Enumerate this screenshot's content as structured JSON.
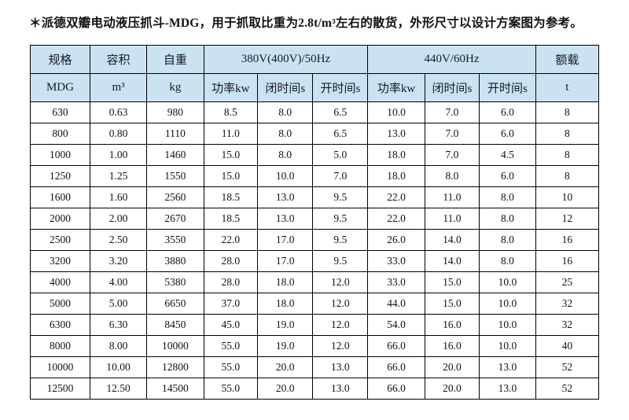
{
  "page": {
    "title": "＊派德双瓣电动液压抓斗-MDG，用于抓取比重为2.8t/m³左右的散货，外形尺寸以设计方案图为参考。"
  },
  "colors": {
    "header_bg": "#cbe3f0",
    "border": "#000000",
    "text": "#111111"
  },
  "table": {
    "header": {
      "spec": "规格",
      "spec_sub": "MDG",
      "capacity": "容积",
      "capacity_sub": "m³",
      "weight": "自重",
      "weight_sub": "kg",
      "group_50hz": "380V(400V)/50Hz",
      "group_60hz": "440V/60Hz",
      "power": "功率kw",
      "close_time": "闭时间s",
      "open_time": "开时间s",
      "load": "额载",
      "load_sub": "t"
    },
    "rows": [
      [
        "630",
        "0.63",
        "980",
        "8.5",
        "8.0",
        "6.5",
        "10.0",
        "7.0",
        "6.0",
        "8"
      ],
      [
        "800",
        "0.80",
        "1110",
        "11.0",
        "8.0",
        "6.5",
        "13.0",
        "7.0",
        "6.0",
        "8"
      ],
      [
        "1000",
        "1.00",
        "1460",
        "15.0",
        "8.0",
        "5.0",
        "18.0",
        "7.0",
        "4.5",
        "8"
      ],
      [
        "1250",
        "1.25",
        "1550",
        "15.0",
        "10.0",
        "7.0",
        "18.0",
        "8.0",
        "6.0",
        "8"
      ],
      [
        "1600",
        "1.60",
        "2560",
        "18.5",
        "13.0",
        "9.5",
        "22.0",
        "11.0",
        "8.0",
        "10"
      ],
      [
        "2000",
        "2.00",
        "2670",
        "18.5",
        "13.0",
        "9.5",
        "22.0",
        "11.0",
        "8.0",
        "12"
      ],
      [
        "2500",
        "2.50",
        "3550",
        "22.0",
        "17.0",
        "9.5",
        "26.0",
        "14.0",
        "8.0",
        "16"
      ],
      [
        "3200",
        "3.20",
        "3880",
        "28.0",
        "17.0",
        "9.5",
        "33.0",
        "14.0",
        "8.0",
        "16"
      ],
      [
        "4000",
        "4.00",
        "5380",
        "28.0",
        "18.0",
        "12.0",
        "33.0",
        "15.0",
        "10.0",
        "25"
      ],
      [
        "5000",
        "5.00",
        "6650",
        "37.0",
        "18.0",
        "12.0",
        "44.0",
        "15.0",
        "10.0",
        "32"
      ],
      [
        "6300",
        "6.30",
        "8450",
        "45.0",
        "19.0",
        "12.0",
        "54.0",
        "16.0",
        "10.0",
        "32"
      ],
      [
        "8000",
        "8.00",
        "10000",
        "55.0",
        "19.0",
        "12.0",
        "66.0",
        "16.0",
        "10.0",
        "40"
      ],
      [
        "10000",
        "10.00",
        "12800",
        "55.0",
        "20.0",
        "13.0",
        "66.0",
        "20.0",
        "13.0",
        "52"
      ],
      [
        "12500",
        "12.50",
        "14500",
        "55.0",
        "20.0",
        "13.0",
        "66.0",
        "20.0",
        "13.0",
        "52"
      ]
    ]
  }
}
